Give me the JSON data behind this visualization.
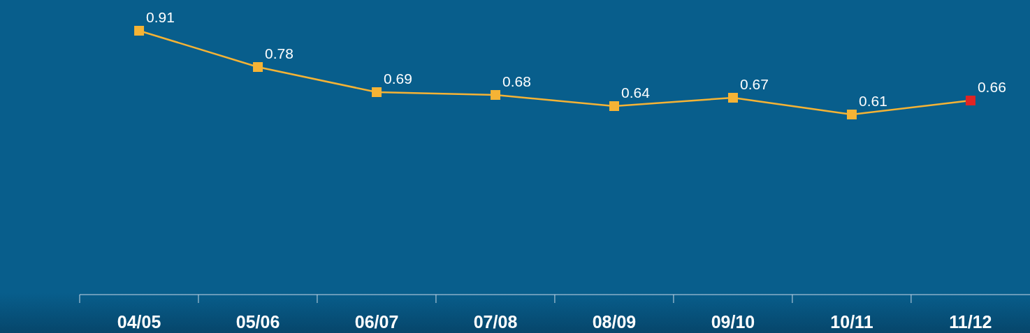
{
  "chart_data": {
    "type": "line",
    "categories": [
      "04/05",
      "05/06",
      "06/07",
      "07/08",
      "08/09",
      "09/10",
      "10/11",
      "11/12"
    ],
    "series": [
      {
        "color": "#f5b335",
        "colors": [
          "#f5b335",
          "#f5b335",
          "#f5b335",
          "#f5b335",
          "#f5b335",
          "#f5b335",
          "#f5b335",
          "#e02424"
        ],
        "values": [
          0.91,
          0.78,
          0.69,
          0.68,
          0.64,
          0.67,
          0.61,
          0.66
        ]
      }
    ],
    "ylim": [
      -0.035,
      1.02
    ],
    "marker": "square",
    "data_labels": true,
    "tick_labels": "x",
    "legend": false
  }
}
